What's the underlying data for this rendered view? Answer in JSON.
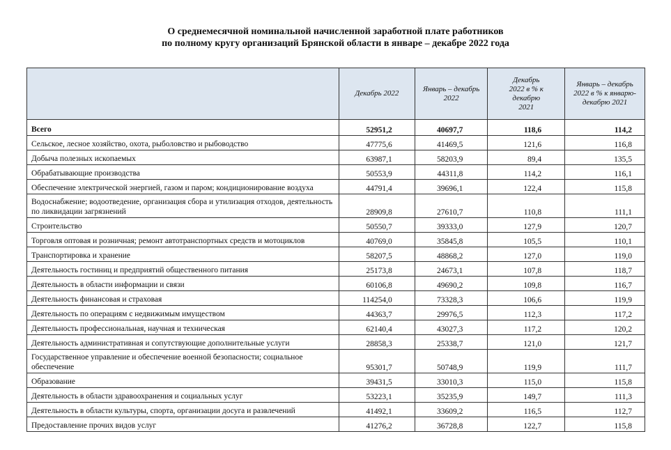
{
  "title": {
    "line1": "О среднемесячной номинальной начисленной заработной плате работников",
    "line2": "по полному кругу организаций Брянской области в январе – декабре 2022 года"
  },
  "headers": [
    "",
    "Декабрь 2022",
    "Январь – декабрь 2022",
    "Декабрь 2022 в % к декабрю 2021",
    "Январь – декабрь 2022 в % к январю- декабрю 2021"
  ],
  "rows": [
    {
      "label": "Всего",
      "v": [
        "52951,2",
        "40697,7",
        "118,6",
        "114,2"
      ]
    },
    {
      "label": "Сельское, лесное хозяйство, охота, рыболовство и рыбоводство",
      "v": [
        "47775,6",
        "41469,5",
        "121,6",
        "116,8"
      ]
    },
    {
      "label": "Добыча полезных ископаемых",
      "v": [
        "63987,1",
        "58203,9",
        "89,4",
        "135,5"
      ]
    },
    {
      "label": "Обрабатывающие производства",
      "v": [
        "50553,9",
        "44311,8",
        "114,2",
        "116,1"
      ]
    },
    {
      "label": "Обеспечение электрической энергией, газом и паром; кондиционирование воздуха",
      "v": [
        "44791,4",
        "39696,1",
        "122,4",
        "115,8"
      ]
    },
    {
      "label": "Водоснабжение; водоотведение, организация сбора и утилизация отходов, деятельность по ликвидации загрязнений",
      "v": [
        "28909,8",
        "27610,7",
        "110,8",
        "111,1"
      ]
    },
    {
      "label": "Строительство",
      "v": [
        "50550,7",
        "39333,0",
        "127,9",
        "120,7"
      ]
    },
    {
      "label": "Торговля оптовая и розничная; ремонт автотранспортных средств и мотоциклов",
      "v": [
        "40769,0",
        "35845,8",
        "105,5",
        "110,1"
      ]
    },
    {
      "label": "Транспортировка и хранение",
      "v": [
        "58207,5",
        "48868,2",
        "127,0",
        "119,0"
      ]
    },
    {
      "label": "Деятельность гостиниц и предприятий общественного питания",
      "v": [
        "25173,8",
        "24673,1",
        "107,8",
        "118,7"
      ]
    },
    {
      "label": "Деятельность в области информации и связи",
      "v": [
        "60106,8",
        "49690,2",
        "109,8",
        "116,7"
      ]
    },
    {
      "label": "Деятельность финансовая и страховая",
      "v": [
        "114254,0",
        "73328,3",
        "106,6",
        "119,9"
      ]
    },
    {
      "label": "Деятельность по операциям с недвижимым имуществом",
      "v": [
        "44363,7",
        "29976,5",
        "112,3",
        "117,2"
      ]
    },
    {
      "label": "Деятельность профессиональная, научная и техническая",
      "v": [
        "62140,4",
        "43027,3",
        "117,2",
        "120,2"
      ]
    },
    {
      "label": "Деятельность административная и сопутствующие дополнительные услуги",
      "v": [
        "28858,3",
        "25338,7",
        "121,0",
        "121,7"
      ]
    },
    {
      "label": "Государственное управление и обеспечение военной безопасности; социальное обеспечение",
      "v": [
        "95301,7",
        "50748,9",
        "119,9",
        "111,7"
      ]
    },
    {
      "label": "Образование",
      "v": [
        "39431,5",
        "33010,3",
        "115,0",
        "115,8"
      ]
    },
    {
      "label": "Деятельность в области здравоохранения  и социальных услуг",
      "v": [
        "53223,1",
        "35235,9",
        "149,7",
        "111,3"
      ]
    },
    {
      "label": "Деятельность в области культуры, спорта, организации досуга и развлечений",
      "v": [
        "41492,1",
        "33609,2",
        "116,5",
        "112,7"
      ]
    },
    {
      "label": "Предоставление прочих видов услуг",
      "v": [
        "41276,2",
        "36728,8",
        "122,7",
        "115,8"
      ]
    }
  ],
  "colors": {
    "header_bg": "#dde6f0",
    "border": "#333333"
  }
}
